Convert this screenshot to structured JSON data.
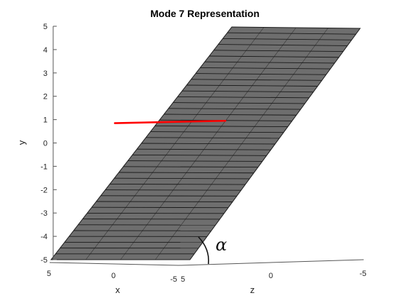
{
  "chart_data": {
    "type": "surface",
    "title": "Mode 7 Representation",
    "xlabel": "x",
    "ylabel": "y",
    "zlabel": "z",
    "x_ticks": [
      "5",
      "0",
      "-5"
    ],
    "y_ticks": [
      "5",
      "4",
      "3",
      "2",
      "1",
      "0",
      "-1",
      "-2",
      "-3",
      "-4",
      "-5"
    ],
    "z_ticks": [
      "5",
      "0",
      "-5"
    ],
    "xlim": [
      -5,
      5
    ],
    "ylim": [
      -5,
      5
    ],
    "zlim": [
      -5,
      5
    ],
    "surface": {
      "face_color": "#6e6e6e",
      "edge_color": "#1a1a1a",
      "description_rows": 40,
      "x_range": [
        -5,
        5
      ],
      "y_range": [
        -5,
        5
      ]
    },
    "line": {
      "color": "#ff0000",
      "points": [
        [
          0,
          0.85
        ],
        [
          4.8,
          0.95
        ]
      ]
    },
    "annotation": "α"
  }
}
